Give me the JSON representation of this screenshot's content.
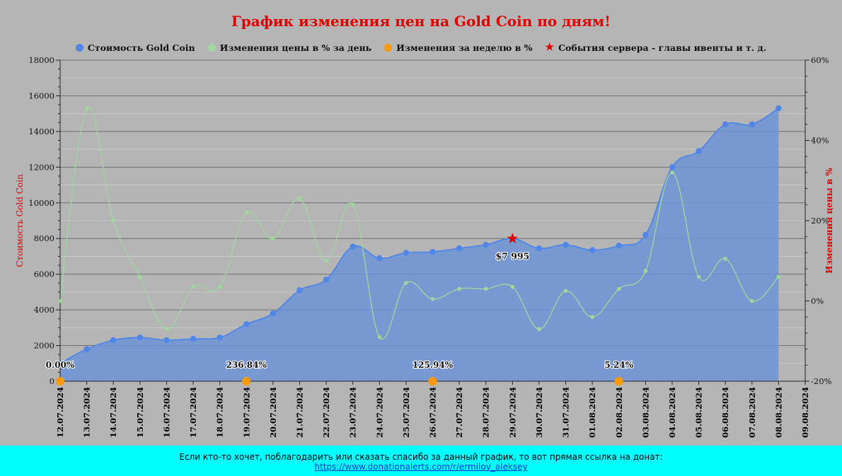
{
  "chart_data": {
    "type": "line",
    "title": "График изменения цен на Gold Coin по дням!",
    "x_categories": [
      "12.07.2024",
      "13.07.2024",
      "14.07.2024",
      "15.07.2024",
      "16.07.2024",
      "17.07.2024",
      "18.07.2024",
      "19.07.2024",
      "20.07.2024",
      "21.07.2024",
      "22.07.2024",
      "23.07.2024",
      "24.07.2024",
      "25.07.2024",
      "26.07.2024",
      "27.07.2024",
      "28.07.2024",
      "29.07.2024",
      "30.07.2024",
      "31.07.2024",
      "01.08.2024",
      "02.08.2024",
      "03.08.2024",
      "04.08.2024",
      "05.08.2024",
      "06.08.2024",
      "07.08.2024",
      "08.08.2024",
      "09.08.2024"
    ],
    "y_left": {
      "label": "Стоимость Gold Coin",
      "min": 0,
      "max": 18000,
      "ticks": [
        0,
        2000,
        4000,
        6000,
        8000,
        10000,
        12000,
        14000,
        16000,
        18000
      ]
    },
    "y_right": {
      "label": "Изменения цены в %",
      "min": -20,
      "max": 60,
      "ticks": [
        "-20%",
        "0%",
        "20%",
        "40%",
        "60%"
      ],
      "tick_values": [
        -20,
        0,
        20,
        40,
        60
      ]
    },
    "grid": true,
    "legend_position": "top-center",
    "series": [
      {
        "name": "Стоимость Gold Coin",
        "axis": "left",
        "style": "area",
        "color": "#4f86e8",
        "values": [
          1000,
          1800,
          2300,
          2450,
          2300,
          2380,
          2450,
          3200,
          3800,
          5100,
          5700,
          7550,
          6900,
          7200,
          7250,
          7450,
          7650,
          7995,
          7450,
          7650,
          7350,
          7600,
          8200,
          12000,
          12900,
          14400,
          14400,
          15300
        ]
      },
      {
        "name": "Изменения цены в % за день",
        "axis": "right",
        "style": "line",
        "color": "#9ed89e",
        "values": [
          0,
          48,
          20,
          6,
          -7,
          3.5,
          3.5,
          22,
          15.5,
          25.5,
          10,
          24,
          -9,
          4.5,
          0.5,
          3,
          3,
          3.5,
          -7,
          2.5,
          -4,
          3,
          7.5,
          32,
          6,
          10.5,
          0,
          6
        ]
      },
      {
        "name": "Изменения за неделю в %",
        "axis": "left",
        "style": "points",
        "color": "#ff9900",
        "points": [
          {
            "x": "12.07.2024",
            "y": 0,
            "label": "0.00%"
          },
          {
            "x": "19.07.2024",
            "y": 0,
            "label": "236.84%"
          },
          {
            "x": "26.07.2024",
            "y": 0,
            "label": "125.94%"
          },
          {
            "x": "02.08.2024",
            "y": 0,
            "label": "5.24%"
          }
        ]
      },
      {
        "name": "События сервера - главы ивенты и т. д.",
        "axis": "left",
        "style": "star",
        "color": "#e00000",
        "points": [
          {
            "x": "29.07.2024",
            "y": 7995,
            "label": "$7 995"
          }
        ]
      }
    ]
  },
  "footer": {
    "text": "Если кто-то хочет, поблагодарить или сказать спасибо за данный график, то вот прямая ссылка на донат:",
    "link": "https://www.donationalerts.com/r/ermilov_aleksey"
  }
}
